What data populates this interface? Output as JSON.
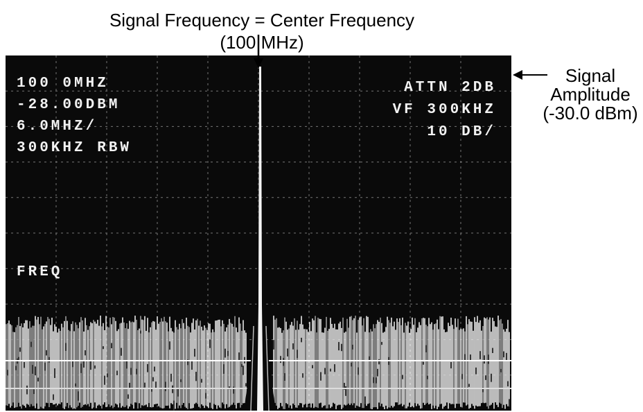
{
  "annotations": {
    "top_line1": "Signal Frequency = Center Frequency",
    "top_line2": "(100 MHz)",
    "right_line1": "Signal",
    "right_line2": "Amplitude",
    "right_line3": "(-30.0 dBm)"
  },
  "screen": {
    "left": [
      "100 0MHZ",
      "-28.00DBM",
      "6.0MHZ/",
      "300KHZ RBW"
    ],
    "mode": "FREQ",
    "right": [
      "ATTN 2DB",
      "VF 300KHZ",
      "10 DB/"
    ]
  }
}
